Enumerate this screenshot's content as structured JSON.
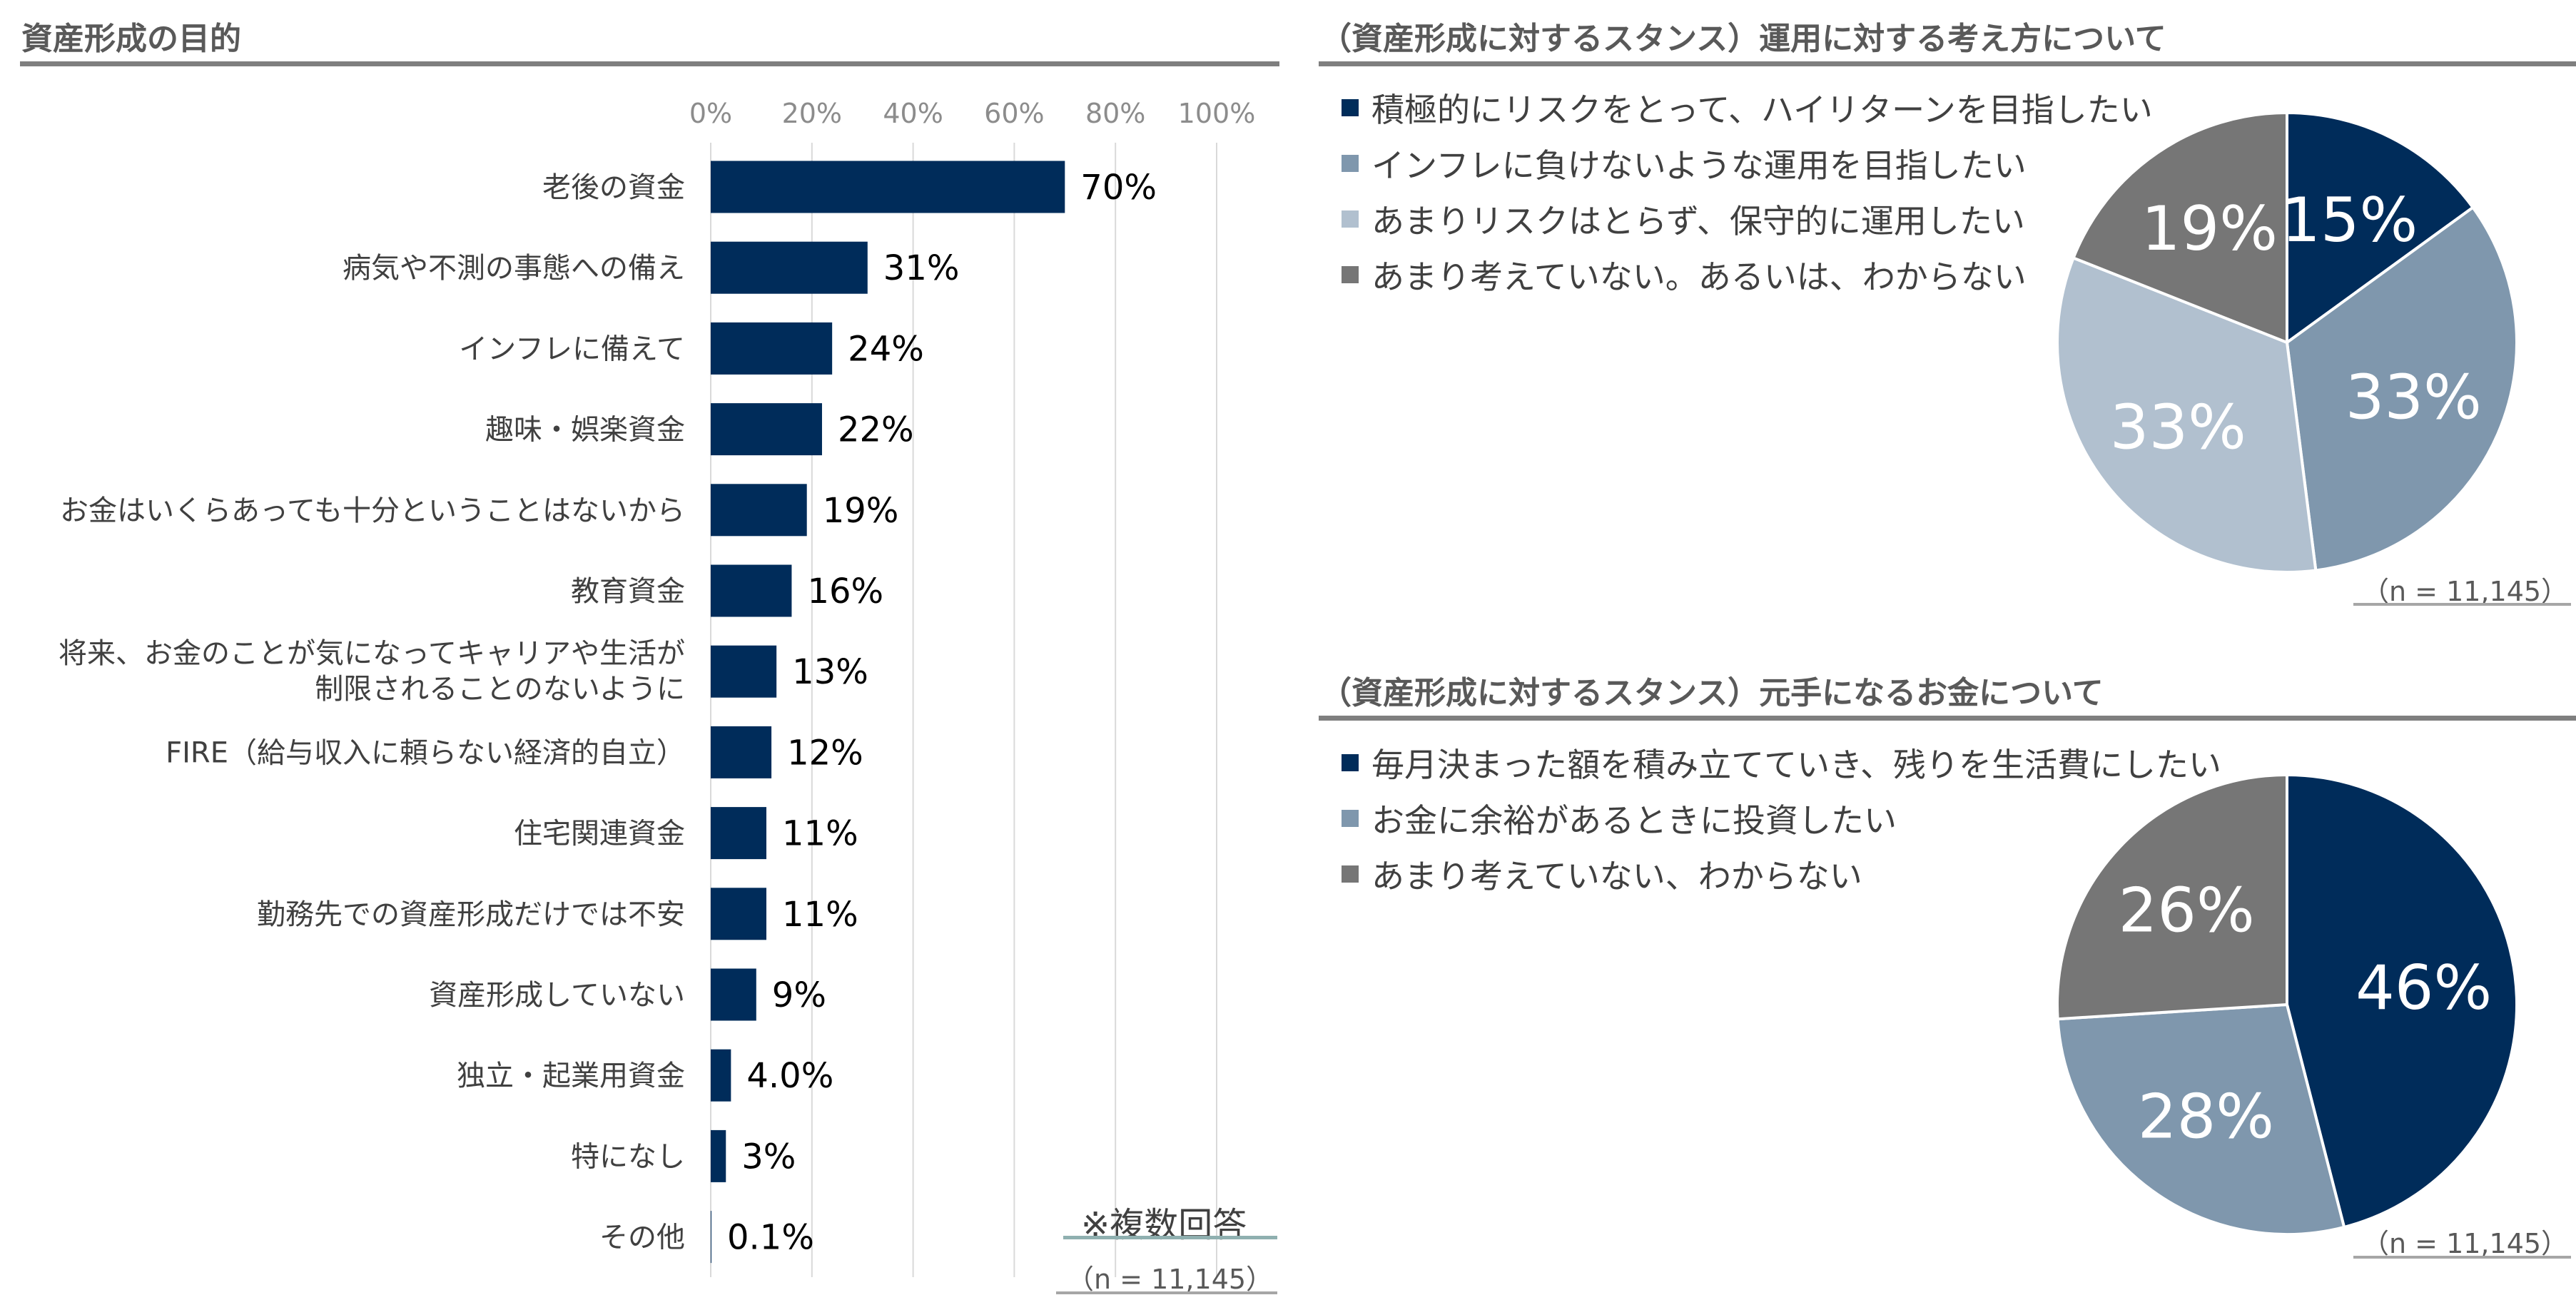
{
  "left_title": "資産形成の目的",
  "top_right_title": "（資産形成に対するスタンス）運用に対する考え方について",
  "bottom_right_title": "（資産形成に対するスタンス）元手になるお金について",
  "multi_answer_note": "※複数回答",
  "n_note_left": "（n = 11,145）",
  "n_note_top_right": "（n = 11,145）",
  "n_note_bottom_right": "（n = 11,145）",
  "colors": {
    "navy": "#002c5a",
    "slate": "#7f97ad",
    "light": "#b1c0cf",
    "gray": "#767676"
  },
  "chart_data": [
    {
      "type": "bar",
      "orientation": "horizontal",
      "xlim": [
        0,
        100
      ],
      "ticks": [
        0,
        20,
        40,
        60,
        80,
        100
      ],
      "tick_labels": [
        "0%",
        "20%",
        "40%",
        "60%",
        "80%",
        "100%"
      ],
      "categories": [
        [
          "老後の資金"
        ],
        [
          "病気や不測の事態への備え"
        ],
        [
          "インフレに備えて"
        ],
        [
          "趣味・娯楽資金"
        ],
        [
          "お金はいくらあっても十分ということはないから"
        ],
        [
          "教育資金"
        ],
        [
          "将来、お金のことが気になってキャリアや生活が",
          "制限されることのないように"
        ],
        [
          "FIRE（給与収入に頼らない経済的自立）"
        ],
        [
          "住宅関連資金"
        ],
        [
          "勤務先での資産形成だけでは不安"
        ],
        [
          "資産形成していない"
        ],
        [
          "独立・起業用資金"
        ],
        [
          "特になし"
        ],
        [
          "その他"
        ]
      ],
      "values": [
        70,
        31,
        24,
        22,
        19,
        16,
        13,
        12,
        11,
        11,
        9,
        4.0,
        3,
        0.1
      ],
      "value_labels": [
        "70%",
        "31%",
        "24%",
        "22%",
        "19%",
        "16%",
        "13%",
        "12%",
        "11%",
        "11%",
        "9%",
        "4.0%",
        "3%",
        "0.1%"
      ],
      "grid": true
    },
    {
      "type": "pie",
      "legend": [
        "積極的にリスクをとって、ハイリターンを目指したい",
        "インフレに負けないような運用を目指したい",
        "あまりリスクはとらず、保守的に運用したい",
        "あまり考えていない。あるいは、わからない"
      ],
      "values": [
        15,
        33,
        33,
        19
      ],
      "value_labels": [
        "15%",
        "33%",
        "33%",
        "19%"
      ],
      "colors": [
        "#002c5a",
        "#7f97ad",
        "#b1c0cf",
        "#767676"
      ]
    },
    {
      "type": "pie",
      "legend": [
        "毎月決まった額を積み立てていき、残りを生活費にしたい",
        "お金に余裕があるときに投資したい",
        "あまり考えていない、わからない"
      ],
      "values": [
        46,
        28,
        26
      ],
      "value_labels": [
        "46%",
        "28%",
        "26%"
      ],
      "colors": [
        "#002c5a",
        "#7f97ad",
        "#767676"
      ]
    }
  ]
}
